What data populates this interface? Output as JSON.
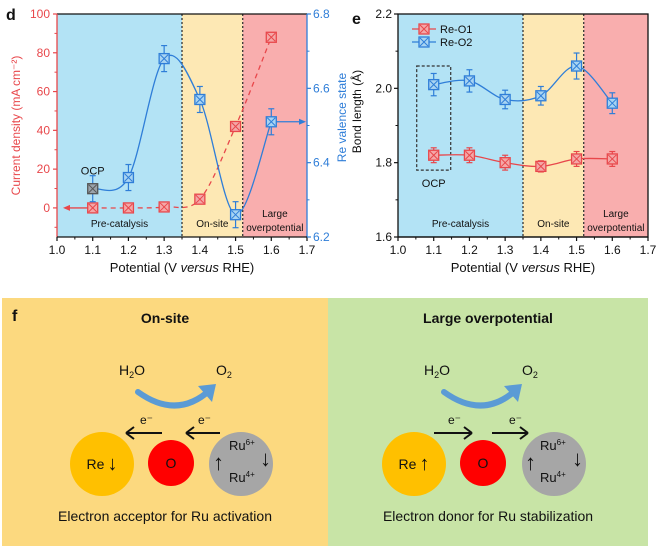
{
  "chart_data": [
    {
      "panel": "d",
      "type": "line",
      "xlabel_prefix": "Potential (V ",
      "xlabel_italic": "versus",
      "xlabel_suffix": " RHE)",
      "ylabel_left": "Current density (mA cm⁻²)",
      "ylabel_right": "Re valence state",
      "xlim": [
        1.0,
        1.7
      ],
      "ylim_left": [
        -15,
        100
      ],
      "ylim_right": [
        6.2,
        6.8
      ],
      "xticks": [
        "1.0",
        "1.1",
        "1.2",
        "1.3",
        "1.4",
        "1.5",
        "1.6",
        "1.7"
      ],
      "yticks_left": [
        "0",
        "20",
        "40",
        "60",
        "80",
        "100"
      ],
      "yticks_right": [
        "6.2",
        "6.4",
        "6.6",
        "6.8"
      ],
      "regions": [
        {
          "label": "Pre-catalysis",
          "from": 1.0,
          "to": 1.35,
          "color": "#b3e3f5"
        },
        {
          "label": "On-site",
          "from": 1.35,
          "to": 1.52,
          "color": "#fde8b4"
        },
        {
          "label": "Large overpotential",
          "label_line1": "Large",
          "label_line2": "overpotential",
          "from": 1.52,
          "to": 1.7,
          "color": "#f9aeae"
        }
      ],
      "series": [
        {
          "name": "Current density",
          "axis": "left",
          "color": "#e8474b",
          "style": "dashed",
          "x": [
            1.1,
            1.2,
            1.3,
            1.4,
            1.5,
            1.6
          ],
          "y": [
            0,
            0,
            0.5,
            4.5,
            42,
            88
          ]
        },
        {
          "name": "Re valence state",
          "axis": "right",
          "color": "#2f7ed8",
          "style": "solid",
          "x": [
            1.1,
            1.2,
            1.3,
            1.4,
            1.5,
            1.6
          ],
          "y": [
            6.33,
            6.36,
            6.68,
            6.57,
            6.26,
            6.51
          ],
          "err": [
            0.035,
            0.035,
            0.035,
            0.035,
            0.035,
            0.035
          ]
        }
      ],
      "annotations": [
        {
          "text": "OCP",
          "x": 1.1
        }
      ]
    },
    {
      "panel": "e",
      "type": "line",
      "xlabel_prefix": "Potential (V ",
      "xlabel_italic": "versus",
      "xlabel_suffix": " RHE)",
      "ylabel": "Bond length (Å)",
      "xlim": [
        1.0,
        1.7
      ],
      "ylim": [
        1.6,
        2.2
      ],
      "xticks": [
        "1.0",
        "1.1",
        "1.2",
        "1.3",
        "1.4",
        "1.5",
        "1.6",
        "1.7"
      ],
      "yticks": [
        "1.6",
        "1.8",
        "2.0",
        "2.2"
      ],
      "regions": [
        {
          "label": "Pre-catalysis",
          "from": 1.0,
          "to": 1.35,
          "color": "#b3e3f5"
        },
        {
          "label": "On-site",
          "from": 1.35,
          "to": 1.52,
          "color": "#fde8b4"
        },
        {
          "label": "Large overpotential",
          "label_line1": "Large",
          "label_line2": "overpotential",
          "from": 1.52,
          "to": 1.7,
          "color": "#f9aeae"
        }
      ],
      "legend_position": "top-left",
      "series": [
        {
          "name": "Re-O1",
          "color": "#e8474b",
          "x": [
            1.1,
            1.2,
            1.3,
            1.4,
            1.5,
            1.6
          ],
          "y": [
            1.82,
            1.82,
            1.8,
            1.79,
            1.81,
            1.81
          ],
          "err": [
            0.02,
            0.02,
            0.02,
            0.015,
            0.02,
            0.02
          ]
        },
        {
          "name": "Re-O2",
          "color": "#2f7ed8",
          "x": [
            1.1,
            1.2,
            1.3,
            1.4,
            1.5,
            1.6
          ],
          "y": [
            2.01,
            2.02,
            1.97,
            1.98,
            2.06,
            1.96
          ],
          "err": [
            0.03,
            0.03,
            0.025,
            0.025,
            0.035,
            0.028
          ]
        }
      ],
      "annotations": [
        {
          "text": "OCP",
          "x": 1.1
        }
      ]
    }
  ],
  "panel_f": {
    "letter": "f",
    "left": {
      "title": "On-site",
      "h2o": "H",
      "h2o_sub": "2",
      "h2o_tail": "O",
      "o2": "O",
      "o2_sub": "2",
      "e1": "e⁻",
      "e2": "e⁻",
      "re": "Re",
      "re_arrow": "↓",
      "o": "O",
      "ru_hi": "Ru",
      "ru_hi_sup": "6+",
      "ru_lo": "Ru",
      "ru_lo_sup": "4+",
      "ru_up": "↑",
      "ru_down": "↓",
      "caption": "Electron acceptor for Ru activation",
      "bg": "#fcd97f"
    },
    "right": {
      "title": "Large overpotential",
      "h2o": "H",
      "h2o_sub": "2",
      "h2o_tail": "O",
      "o2": "O",
      "o2_sub": "2",
      "e1": "e⁻",
      "e2": "e⁻",
      "re": "Re",
      "re_arrow": "↑",
      "o": "O",
      "ru_hi": "Ru",
      "ru_hi_sup": "6+",
      "ru_lo": "Ru",
      "ru_lo_sup": "4+",
      "ru_up": "↑",
      "ru_down": "↓",
      "caption": "Electron donor for Ru stabilization",
      "bg": "#c8e4a6"
    },
    "colors": {
      "re": "#ffc000",
      "o": "#ff0000",
      "ru": "#a6a6a6",
      "curve_arrow": "#5b9bd5"
    }
  }
}
